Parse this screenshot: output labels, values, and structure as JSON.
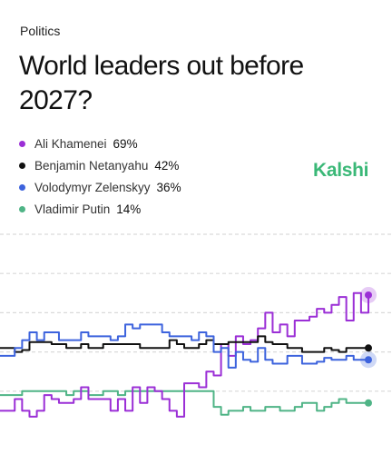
{
  "header": {
    "category": "Politics",
    "title": "World leaders out before 2027?"
  },
  "brand": {
    "name": "Kalshi",
    "color": "#3ab877"
  },
  "colors": {
    "grid": "#d9d9d9"
  },
  "chart_data": {
    "type": "line",
    "grid": true,
    "legend_placement": "top-left",
    "ylim": [
      0,
      100
    ],
    "x": [
      0,
      2,
      4,
      6,
      8,
      10,
      12,
      14,
      16,
      18,
      20,
      22,
      24,
      26,
      28,
      30,
      32,
      34,
      36,
      38,
      40,
      42,
      44,
      46,
      48,
      50,
      52,
      54,
      56,
      58,
      60,
      62,
      64,
      66,
      68,
      70,
      72,
      74,
      76,
      78,
      80,
      82,
      84,
      86,
      88,
      90,
      92,
      94,
      96,
      98,
      100
    ],
    "series": [
      {
        "name": "Ali Khamenei",
        "value_label": "69%",
        "color": "#9b2fd6",
        "endpoint_halo": true,
        "values": [
          10,
          10,
          16,
          10,
          7,
          10,
          18,
          16,
          14,
          14,
          16,
          22,
          16,
          16,
          16,
          10,
          16,
          10,
          22,
          14,
          22,
          20,
          16,
          10,
          7,
          24,
          24,
          22,
          30,
          28,
          44,
          38,
          48,
          44,
          46,
          52,
          60,
          50,
          54,
          48,
          56,
          56,
          58,
          62,
          60,
          64,
          68,
          56,
          70,
          60,
          69
        ]
      },
      {
        "name": "Benjamin Netanyahu",
        "value_label": "42%",
        "color": "#111111",
        "endpoint_halo": false,
        "values": [
          42,
          42,
          40,
          41,
          45,
          45,
          45,
          44,
          44,
          42,
          42,
          44,
          42,
          42,
          44,
          44,
          44,
          44,
          44,
          42,
          42,
          42,
          42,
          46,
          44,
          42,
          42,
          44,
          46,
          44,
          44,
          45,
          45,
          45,
          45,
          48,
          45,
          44,
          44,
          42,
          42,
          40,
          40,
          40,
          42,
          41,
          40,
          42,
          42,
          42,
          42
        ]
      },
      {
        "name": "Volodymyr Zelenskyy",
        "value_label": "36%",
        "color": "#3d63dd",
        "endpoint_halo": true,
        "values": [
          38,
          38,
          42,
          46,
          50,
          46,
          50,
          50,
          46,
          46,
          46,
          50,
          48,
          48,
          48,
          46,
          48,
          54,
          52,
          54,
          54,
          54,
          50,
          48,
          48,
          48,
          46,
          50,
          48,
          40,
          42,
          32,
          40,
          36,
          35,
          42,
          36,
          34,
          34,
          38,
          38,
          34,
          34,
          35,
          37,
          36,
          36,
          38,
          36,
          36,
          36
        ]
      },
      {
        "name": "Vladimir Putin",
        "value_label": "14%",
        "color": "#4fb486",
        "endpoint_halo": false,
        "values": [
          18,
          18,
          18,
          20,
          20,
          20,
          20,
          20,
          20,
          18,
          20,
          20,
          18,
          18,
          20,
          20,
          18,
          20,
          20,
          20,
          20,
          20,
          20,
          20,
          20,
          20,
          20,
          20,
          20,
          12,
          8,
          10,
          10,
          12,
          10,
          10,
          12,
          12,
          10,
          10,
          12,
          14,
          14,
          10,
          12,
          14,
          16,
          14,
          14,
          14,
          14
        ]
      }
    ]
  }
}
